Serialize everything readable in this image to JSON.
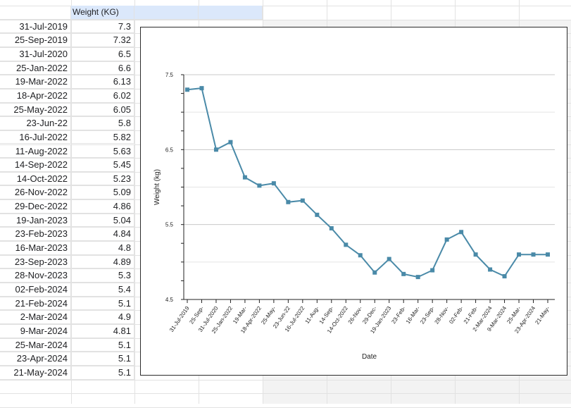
{
  "sheet": {
    "header_b": "Weight (KG)",
    "rows": [
      {
        "date": "31-Jul-2019",
        "weight": "7.3"
      },
      {
        "date": "25-Sep-2019",
        "weight": "7.32"
      },
      {
        "date": "31-Jul-2020",
        "weight": "6.5"
      },
      {
        "date": "25-Jan-2022",
        "weight": "6.6"
      },
      {
        "date": "19-Mar-2022",
        "weight": "6.13"
      },
      {
        "date": "18-Apr-2022",
        "weight": "6.02"
      },
      {
        "date": "25-May-2022",
        "weight": "6.05"
      },
      {
        "date": "23-Jun-22",
        "weight": "5.8"
      },
      {
        "date": "16-Jul-2022",
        "weight": "5.82"
      },
      {
        "date": "11-Aug-2022",
        "weight": "5.63"
      },
      {
        "date": "14-Sep-2022",
        "weight": "5.45"
      },
      {
        "date": "14-Oct-2022",
        "weight": "5.23"
      },
      {
        "date": "26-Nov-2022",
        "weight": "5.09"
      },
      {
        "date": "29-Dec-2022",
        "weight": "4.86"
      },
      {
        "date": "19-Jan-2023",
        "weight": "5.04"
      },
      {
        "date": "23-Feb-2023",
        "weight": "4.84"
      },
      {
        "date": "16-Mar-2023",
        "weight": "4.8"
      },
      {
        "date": "23-Sep-2023",
        "weight": "4.89"
      },
      {
        "date": "28-Nov-2023",
        "weight": "5.3"
      },
      {
        "date": "02-Feb-2024",
        "weight": "5.4"
      },
      {
        "date": "21-Feb-2024",
        "weight": "5.1"
      },
      {
        "date": "2-Mar-2024",
        "weight": "4.9"
      },
      {
        "date": "9-Mar-2024",
        "weight": "4.81"
      },
      {
        "date": "25-Mar-2024",
        "weight": "5.1"
      },
      {
        "date": "23-Apr-2024",
        "weight": "5.1"
      },
      {
        "date": "21-May-2024",
        "weight": "5.1"
      }
    ]
  },
  "colors": {
    "line": "#4a8aa8",
    "header_fill": "#dbe8fb",
    "gridline": "#e2e2e2"
  },
  "chart_data": {
    "type": "line",
    "categories": [
      "31-Jul-2019",
      "25-Sep-",
      "31-Jul-2020",
      "25-Jan-2022",
      "19-Mar-",
      "18-Apr-2022",
      "25-May-",
      "23-Jun-22",
      "16-Jul-2022",
      "11-Aug-",
      "14-Sep-",
      "14-Oct-2022",
      "26-Nov-",
      "29-Dec-",
      "19-Jan-2023",
      "23-Feb-",
      "16-Mar-",
      "23-Sep-",
      "28-Nov-",
      "02-Feb-",
      "21-Feb-",
      "2-Mar-2024",
      "9-Mar-2024",
      "25-Mar-",
      "23-Apr-2024",
      "21-May-"
    ],
    "series": [
      {
        "values": [
          7.3,
          7.32,
          6.5,
          6.6,
          6.13,
          6.02,
          6.05,
          5.8,
          5.82,
          5.63,
          5.45,
          5.23,
          5.09,
          4.86,
          5.04,
          4.84,
          4.8,
          4.89,
          5.3,
          5.4,
          5.1,
          4.9,
          4.81,
          5.1,
          5.1,
          5.1
        ]
      }
    ],
    "xlabel": "Date",
    "ylabel": "Weight (kg)",
    "yticks": [
      "4.5",
      "5.5",
      "6.5",
      "7.5"
    ],
    "ylim": [
      4.5,
      7.5
    ],
    "grid": true,
    "legend": "none"
  }
}
